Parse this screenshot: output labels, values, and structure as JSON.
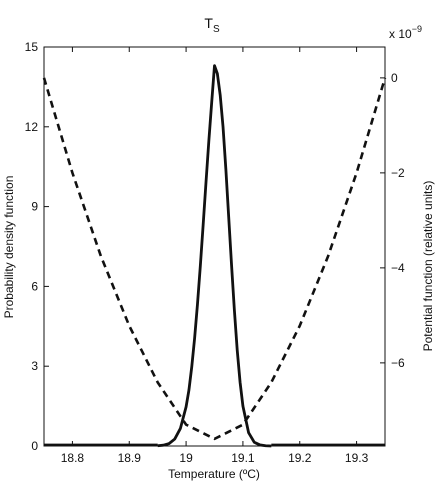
{
  "chart_data": {
    "type": "line",
    "title_main": "T",
    "title_sub": "S",
    "xlabel": "Temperature (ºC)",
    "ylabel_left": "Probability density function",
    "ylabel_right": "Potential function (relative units)",
    "right_axis_multiplier_base": "x 10",
    "right_axis_multiplier_exp": "−9",
    "xlim": [
      18.75,
      19.35
    ],
    "ylim_left": [
      0,
      15
    ],
    "ylim_right": [
      -7.75,
      0.65
    ],
    "x_ticks": [
      {
        "value": 18.8,
        "label": "18.8"
      },
      {
        "value": 18.9,
        "label": "18.9"
      },
      {
        "value": 19.0,
        "label": "19"
      },
      {
        "value": 19.1,
        "label": "19.1"
      },
      {
        "value": 19.2,
        "label": "19.2"
      },
      {
        "value": 19.3,
        "label": "19.3"
      }
    ],
    "y_left_ticks": [
      {
        "value": 0,
        "label": "0"
      },
      {
        "value": 3,
        "label": "3"
      },
      {
        "value": 6,
        "label": "6"
      },
      {
        "value": 9,
        "label": "9"
      },
      {
        "value": 12,
        "label": "12"
      },
      {
        "value": 15,
        "label": "15"
      }
    ],
    "y_right_ticks": [
      {
        "value": 0,
        "label": "0"
      },
      {
        "value": -2,
        "label": "−2"
      },
      {
        "value": -4,
        "label": "−4"
      },
      {
        "value": -6,
        "label": "−6"
      }
    ],
    "series": [
      {
        "axis": "left",
        "style": "solid",
        "color": "#111111",
        "x": [
          18.95,
          18.96,
          18.97,
          18.98,
          18.99,
          19.0,
          19.005,
          19.01,
          19.015,
          19.02,
          19.025,
          19.03,
          19.035,
          19.04,
          19.045,
          19.05,
          19.055,
          19.06,
          19.065,
          19.07,
          19.075,
          19.08,
          19.085,
          19.09,
          19.095,
          19.1,
          19.11,
          19.12,
          19.13,
          19.14,
          19.15
        ],
        "y": [
          0.01,
          0.03,
          0.09,
          0.26,
          0.66,
          1.47,
          2.1,
          2.98,
          4.05,
          5.32,
          6.75,
          8.3,
          9.9,
          11.46,
          12.9,
          14.3,
          14.0,
          13.2,
          12.0,
          10.4,
          8.6,
          6.8,
          5.1,
          3.6,
          2.4,
          1.5,
          0.5,
          0.14,
          0.04,
          0.01,
          0.0
        ]
      },
      {
        "axis": "right",
        "style": "dashed",
        "color": "#111111",
        "x": [
          18.75,
          18.8,
          18.85,
          18.9,
          18.95,
          19.0,
          19.05,
          19.1,
          19.15,
          19.2,
          19.25,
          19.3,
          19.35
        ],
        "y": [
          0.0,
          -2.0,
          -3.75,
          -5.22,
          -6.41,
          -7.3,
          -7.6,
          -7.3,
          -6.41,
          -5.22,
          -3.75,
          -2.0,
          0.0
        ]
      }
    ],
    "grid": false,
    "legend": "none"
  }
}
